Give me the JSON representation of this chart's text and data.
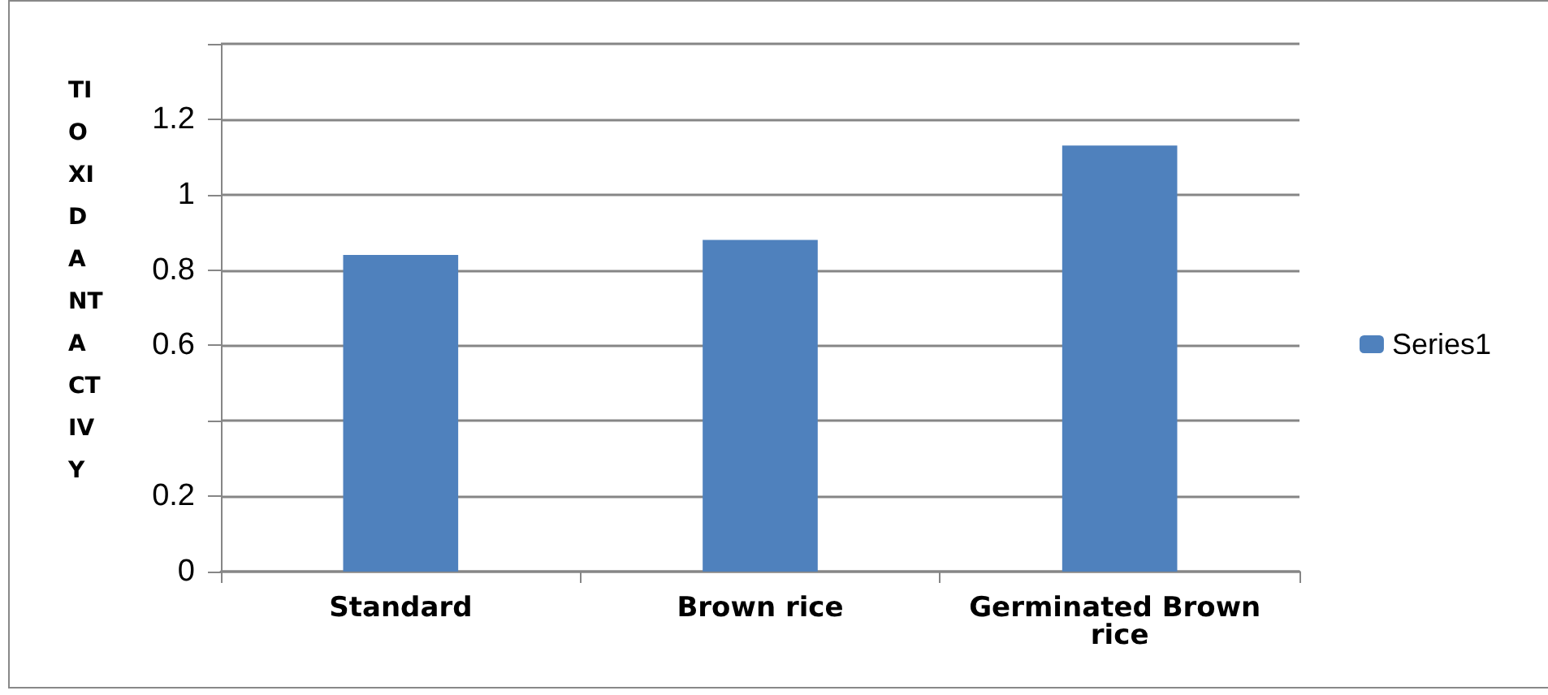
{
  "chart_data": {
    "type": "bar",
    "ylabel": "TI O XI D A NT A CT IV Y",
    "categories": [
      "Standard",
      "Brown rice",
      "Germinated Brown rice"
    ],
    "series": [
      {
        "name": "Series1",
        "color": "#4f81bd",
        "values": [
          0.84,
          0.88,
          1.13
        ]
      }
    ],
    "ylim": [
      0,
      1.4
    ],
    "yticks": [
      0,
      0.2,
      {
        "value": 0.4,
        "label": null
      },
      0.6,
      0.8,
      1,
      1.2,
      {
        "value": 1.4,
        "label": null
      }
    ],
    "grid": "y",
    "legend": "right"
  }
}
